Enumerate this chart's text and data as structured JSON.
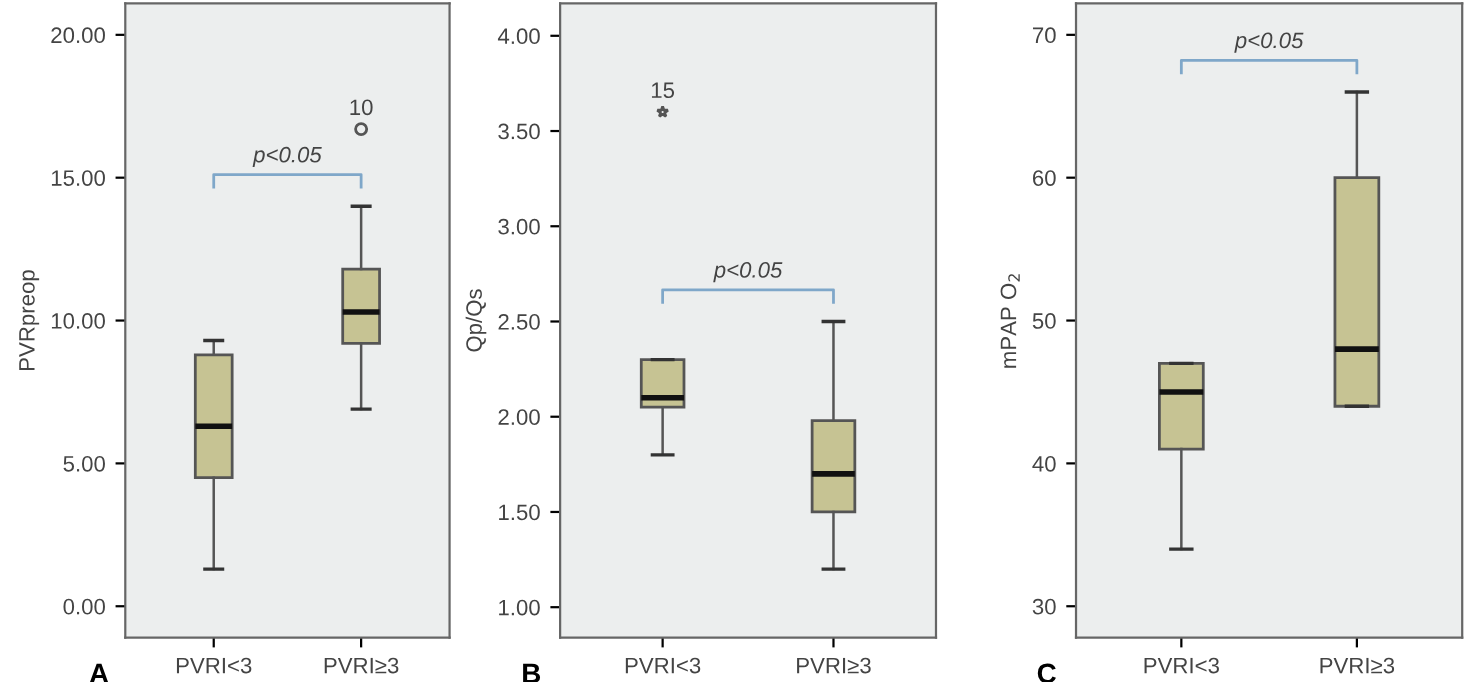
{
  "chart_data": [
    {
      "type": "box",
      "ylabel": "PVRpreop",
      "categories": [
        "PVRI<3",
        "PVRI≥3"
      ],
      "color": "#c6c393",
      "marker": "circle",
      "boxes": [
        {
          "low": 1.3,
          "q1": 4.5,
          "median": 6.3,
          "q3": 8.8,
          "high": 9.3
        },
        {
          "low": 6.9,
          "q1": 9.2,
          "median": 10.3,
          "q3": 11.8,
          "high": 14.0,
          "outliers": [
            16.7
          ]
        }
      ],
      "ylim": [
        -1.1,
        21.1
      ],
      "yticks": [
        {
          "value": 0,
          "label": "0.00"
        },
        {
          "value": 5,
          "label": "5.00"
        },
        {
          "value": 10,
          "label": "10.00"
        },
        {
          "value": 15,
          "label": "15.00"
        },
        {
          "value": 20,
          "label": "20.00"
        }
      ],
      "annotations": [
        "A",
        "p<0.05",
        "10"
      ]
    },
    {
      "type": "box",
      "ylabel": "Qp/Qs",
      "categories": [
        "PVRI<3",
        "PVRI≥3"
      ],
      "color": "#c6c393",
      "marker": "star",
      "boxes": [
        {
          "low": 1.8,
          "q1": 2.05,
          "median": 2.1,
          "q3": 2.3,
          "high": 2.3,
          "outliers": [
            3.6
          ]
        },
        {
          "low": 1.2,
          "q1": 1.5,
          "median": 1.7,
          "q3": 1.98,
          "high": 2.5
        }
      ],
      "ylim": [
        0.84,
        4.17
      ],
      "yticks": [
        {
          "value": 1,
          "label": "1.00"
        },
        {
          "value": 1.5,
          "label": "1.50"
        },
        {
          "value": 2,
          "label": "2.00"
        },
        {
          "value": 2.5,
          "label": "2.50"
        },
        {
          "value": 3,
          "label": "3.00"
        },
        {
          "value": 3.5,
          "label": "3.50"
        },
        {
          "value": 4,
          "label": "4.00"
        }
      ],
      "annotations": [
        "B",
        "p<0.05",
        "15"
      ]
    },
    {
      "type": "box",
      "ylabel": "mPAP O$_{2}$",
      "categories": [
        "PVRI<3",
        "PVRI≥3"
      ],
      "color": "#c6c393",
      "boxes": [
        {
          "low": 34,
          "q1": 41,
          "median": 45,
          "q3": 47,
          "high": 47
        },
        {
          "low": 44,
          "q1": 44,
          "median": 48,
          "q3": 60,
          "high": 66
        }
      ],
      "ylim": [
        27.8,
        72.2
      ],
      "yticks": [
        30,
        40,
        50,
        60,
        70
      ],
      "annotations": [
        "C",
        "p<0.05"
      ]
    }
  ]
}
